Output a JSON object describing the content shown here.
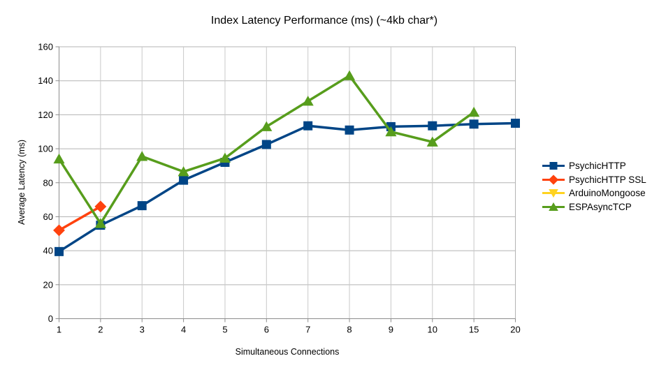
{
  "title": "Index Latency Performance (ms) (~4kb char*)",
  "chart_data": {
    "type": "line",
    "title": "Index Latency Performance (ms) (~4kb char*)",
    "xlabel": "Simultaneous Connections",
    "ylabel": "Average Latency (ms)",
    "categories": [
      "1",
      "2",
      "3",
      "4",
      "5",
      "6",
      "7",
      "8",
      "9",
      "10",
      "15",
      "20"
    ],
    "ylim": [
      0,
      160
    ],
    "yticks": [
      0,
      20,
      40,
      60,
      80,
      100,
      120,
      140,
      160
    ],
    "grid": "both",
    "legend_position": "right",
    "series": [
      {
        "name": "PsychicHTTP",
        "color": "#004586",
        "marker": "square",
        "values": [
          39.5,
          55,
          66.5,
          81.5,
          92,
          102.5,
          113.5,
          111,
          113,
          113.5,
          114.5,
          115
        ]
      },
      {
        "name": "PsychicHTTP SSL",
        "color": "#ff420e",
        "marker": "diamond",
        "values": [
          52,
          66,
          null,
          null,
          null,
          null,
          null,
          null,
          null,
          null,
          null,
          null
        ]
      },
      {
        "name": "ArduinoMongoose",
        "color": "#ffd320",
        "marker": "triangle-down",
        "values": [
          null,
          null,
          null,
          null,
          null,
          null,
          null,
          null,
          null,
          null,
          null,
          null
        ]
      },
      {
        "name": "ESPAsyncTCP",
        "color": "#579d1c",
        "marker": "triangle-up",
        "values": [
          94,
          56,
          95.5,
          86.5,
          94.5,
          113,
          128,
          143,
          110,
          104,
          121.5,
          null
        ]
      }
    ]
  }
}
